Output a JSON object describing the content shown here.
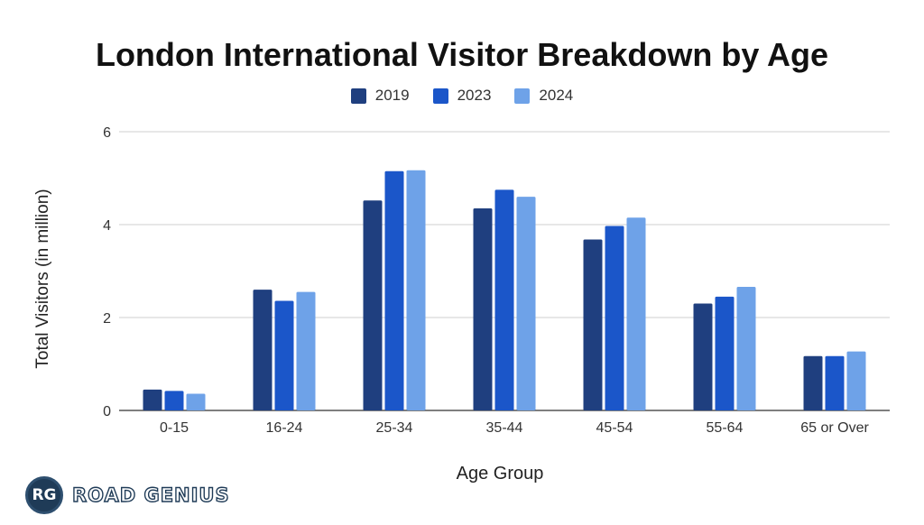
{
  "chart_data": {
    "type": "bar",
    "title": "London International Visitor Breakdown by Age",
    "xlabel": "Age Group",
    "ylabel": "Total Visitors (in million)",
    "categories": [
      "0-15",
      "16-24",
      "25-34",
      "35-44",
      "45-54",
      "55-64",
      "65 or Over"
    ],
    "series": [
      {
        "name": "2019",
        "color": "#1f3f7f",
        "values": [
          0.45,
          2.6,
          4.52,
          4.35,
          3.68,
          2.3,
          1.17
        ]
      },
      {
        "name": "2023",
        "color": "#1b56c9",
        "values": [
          0.42,
          2.36,
          5.15,
          4.75,
          3.97,
          2.45,
          1.17
        ]
      },
      {
        "name": "2024",
        "color": "#6ea2e8",
        "values": [
          0.36,
          2.55,
          5.17,
          4.6,
          4.15,
          2.66,
          1.27
        ]
      }
    ],
    "ylim": [
      0,
      6
    ],
    "yticks": [
      0,
      2,
      4,
      6
    ],
    "grid": true,
    "legend": "top-center"
  },
  "branding": {
    "logo_initials": "RG",
    "logo_text": "ROAD GENIUS"
  }
}
